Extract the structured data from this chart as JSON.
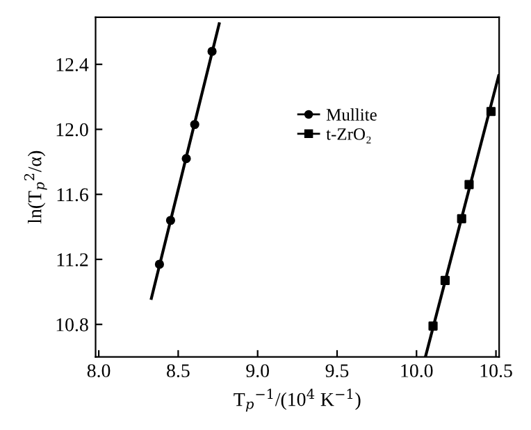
{
  "chart_data": {
    "type": "scatter",
    "xlabel": "T$_{p}$$^{−1}$/(10$^{4}$ K$^{−1}$)",
    "ylabel": "ln(T$_{p}$$^{2}$/α)",
    "xlim": [
      7.98,
      10.52
    ],
    "xticks": [
      {
        "value": 8.0,
        "label": "8.0"
      },
      8.5,
      {
        "value": 9.0,
        "label": "9.0"
      },
      9.5,
      {
        "value": 10.0,
        "label": "10.0"
      },
      10.5
    ],
    "ylim": [
      10.6,
      12.69
    ],
    "yticks": [
      10.8,
      11.2,
      11.6,
      {
        "value": 12.0,
        "label": "12.0"
      },
      12.4
    ],
    "grid": false,
    "legend": "center",
    "series": [
      {
        "name": "Mullite",
        "marker": "circle",
        "color": "#000000",
        "x": [
          8.382,
          8.452,
          8.551,
          8.604,
          8.713
        ],
        "values": [
          11.17,
          11.44,
          11.82,
          12.03,
          12.48
        ]
      },
      {
        "name": "t-ZrO₂",
        "marker": "square",
        "color": "#000000",
        "x": [
          10.104,
          10.18,
          10.284,
          10.331,
          10.469
        ],
        "values": [
          10.79,
          11.07,
          11.45,
          11.66,
          12.11
        ]
      },
      {
        "type": "line",
        "color": "#000000",
        "line_style": "solid",
        "x": [
          8.331,
          8.758
        ],
        "values": [
          10.96,
          12.65
        ]
      },
      {
        "type": "line",
        "color": "#000000",
        "line_style": "solid",
        "x": [
          10.056,
          10.517
        ],
        "values": [
          10.6,
          12.33
        ]
      }
    ]
  }
}
